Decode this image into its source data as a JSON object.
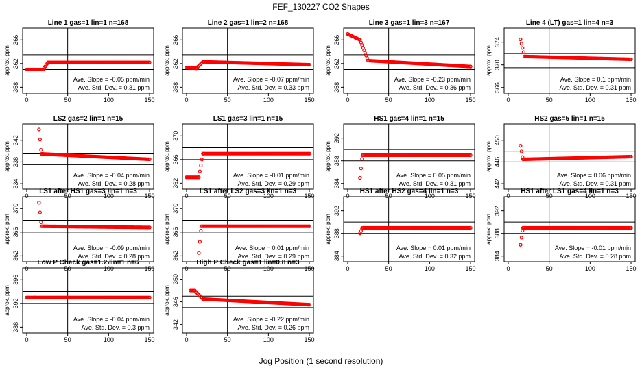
{
  "figure": {
    "title": "FEF_130227  CO2 Shapes",
    "xlabel": "Jog Position (1 second resolution)"
  },
  "chart_data": [
    {
      "type": "scatter",
      "title": "Line 1 gas=1 lin=1 n=168",
      "ylabel": "approx. ppm",
      "xlim": [
        -5,
        155
      ],
      "ylim": [
        357,
        368
      ],
      "xticks": [
        0,
        50,
        100,
        150
      ],
      "yticks": [
        358,
        362,
        366
      ],
      "vline": 50,
      "hlines": [
        363.5,
        361
      ],
      "slope": "Ave. Slope = -0.05 ppm/min",
      "stddev": "Ave. Std. Dev. = 0.31 ppm",
      "x": [
        0,
        20,
        26,
        150
      ],
      "y": [
        361,
        361,
        362.2,
        362.2
      ]
    },
    {
      "type": "scatter",
      "title": "Line 2 gas=1 lin=2 n=168",
      "ylabel": "approx. ppm",
      "xlim": [
        -5,
        155
      ],
      "ylim": [
        357,
        368
      ],
      "xticks": [
        0,
        50,
        100,
        150
      ],
      "yticks": [
        358,
        362,
        366
      ],
      "vline": 50,
      "hlines": [
        363.5,
        361
      ],
      "slope": "Ave. Slope = -0.07 ppm/min",
      "stddev": "Ave. Std. Dev. = 0.33 ppm",
      "x": [
        0,
        12,
        20,
        150
      ],
      "y": [
        361.3,
        361.2,
        362.3,
        361.8
      ]
    },
    {
      "type": "scatter",
      "title": "Line 3 gas=1 lin=3 n=167",
      "ylabel": "approx. ppm",
      "xlim": [
        -5,
        155
      ],
      "ylim": [
        357,
        368
      ],
      "xticks": [
        0,
        50,
        100,
        150
      ],
      "yticks": [
        358,
        362,
        366
      ],
      "vline": 50,
      "hlines": [
        363.5,
        361
      ],
      "slope": "Ave. Slope = -0.23 ppm/min",
      "stddev": "Ave. Std. Dev. = 0.36 ppm",
      "x": [
        0,
        15,
        25,
        150
      ],
      "y": [
        367,
        366,
        362.5,
        361.5
      ]
    },
    {
      "type": "scatter",
      "title": "Line 4 (LT) gas=1 lin=4 n=3",
      "ylabel": "approx. ppm",
      "xlim": [
        -5,
        155
      ],
      "ylim": [
        365,
        376.5
      ],
      "xticks": [
        0,
        50,
        100,
        150
      ],
      "yticks": [
        366,
        370,
        374
      ],
      "vline": 50,
      "hlines": [
        372,
        369.5
      ],
      "slope": "Ave. Slope = 0.1 ppm/min",
      "stddev": "Ave. Std. Dev. = 0.31 ppm",
      "x": [
        15,
        20,
        150
      ],
      "y": [
        374.5,
        371.5,
        371
      ]
    },
    {
      "type": "scatter",
      "title": "LS2 gas=2 lin=1 n=15",
      "ylabel": "approx. ppm",
      "xlim": [
        -5,
        155
      ],
      "ylim": [
        333,
        345
      ],
      "xticks": [
        0,
        50,
        100,
        150
      ],
      "yticks": [
        334,
        338,
        342
      ],
      "vline": 50,
      "hlines": [
        339.5,
        337.5
      ],
      "slope": "Ave. Slope = -0.04 ppm/min",
      "stddev": "Ave. Std. Dev. = 0.28 ppm",
      "x": [
        15,
        18,
        150
      ],
      "y": [
        344,
        339.5,
        338.5
      ]
    },
    {
      "type": "scatter",
      "title": "LS1 gas=3 lin=1 n=15",
      "ylabel": "approx. ppm",
      "xlim": [
        -5,
        155
      ],
      "ylim": [
        361,
        372
      ],
      "xticks": [
        0,
        50,
        100,
        150
      ],
      "yticks": [
        362,
        366,
        370
      ],
      "vline": 50,
      "hlines": [
        368,
        366
      ],
      "slope": "Ave. Slope = -0.01 ppm/min",
      "stddev": "Ave. Std. Dev. = 0.29 ppm",
      "x": [
        0,
        15,
        20,
        150
      ],
      "y": [
        363,
        363,
        367,
        367
      ]
    },
    {
      "type": "scatter",
      "title": "HS1 gas=4 lin=1 n=15",
      "ylabel": "approx. ppm",
      "xlim": [
        -5,
        155
      ],
      "ylim": [
        383,
        394.5
      ],
      "xticks": [
        0,
        50,
        100,
        150
      ],
      "yticks": [
        384,
        388,
        392
      ],
      "vline": 50,
      "hlines": [
        390,
        388
      ],
      "slope": "Ave. Slope = 0.05 ppm/min",
      "stddev": "Ave. Std. Dev. = 0.31 ppm",
      "x": [
        15,
        18,
        150
      ],
      "y": [
        385,
        389,
        389
      ]
    },
    {
      "type": "scatter",
      "title": "HS2 gas=5 lin=1 n=15",
      "ylabel": "approx. ppm",
      "xlim": [
        -5,
        155
      ],
      "ylim": [
        441,
        453
      ],
      "xticks": [
        0,
        50,
        100,
        150
      ],
      "yticks": [
        442,
        446,
        450
      ],
      "vline": 50,
      "hlines": [
        448,
        446
      ],
      "slope": "Ave. Slope = 0.06 ppm/min",
      "stddev": "Ave. Std. Dev. = 0.31 ppm",
      "x": [
        15,
        18,
        150
      ],
      "y": [
        449,
        446.5,
        447
      ]
    },
    {
      "type": "scatter",
      "title": "LS1 after HS1 gas=3 lin=1 n=3",
      "ylabel": "approx. ppm",
      "xlim": [
        -5,
        155
      ],
      "ylim": [
        361,
        372
      ],
      "xticks": [
        0,
        50,
        100,
        150
      ],
      "yticks": [
        362,
        366,
        370
      ],
      "vline": 50,
      "hlines": [
        368,
        366
      ],
      "slope": "Ave. Slope = -0.09 ppm/min",
      "stddev": "Ave. Std. Dev. = 0.28 ppm",
      "x": [
        15,
        18,
        150
      ],
      "y": [
        371,
        367,
        366.8
      ]
    },
    {
      "type": "scatter",
      "title": "LS1 after LS2 gas=3 lin=1 n=3",
      "ylabel": "approx. ppm",
      "xlim": [
        -5,
        155
      ],
      "ylim": [
        361,
        372
      ],
      "xticks": [
        0,
        50,
        100,
        150
      ],
      "yticks": [
        362,
        366,
        370
      ],
      "vline": 50,
      "hlines": [
        368,
        366
      ],
      "slope": "Ave. Slope = 0.01 ppm/min",
      "stddev": "Ave. Std. Dev. = 0.29 ppm",
      "x": [
        15,
        18,
        150
      ],
      "y": [
        362.5,
        367,
        367
      ]
    },
    {
      "type": "scatter",
      "title": "HS1 after HS2 gas=4 lin=1 n=3",
      "ylabel": "approx. ppm",
      "xlim": [
        -5,
        155
      ],
      "ylim": [
        383,
        394.5
      ],
      "xticks": [
        0,
        50,
        100,
        150
      ],
      "yticks": [
        384,
        388,
        392
      ],
      "vline": 50,
      "hlines": [
        390,
        388
      ],
      "slope": "Ave. Slope = 0.01 ppm/min",
      "stddev": "Ave. Std. Dev. = 0.32 ppm",
      "x": [
        15,
        18,
        150
      ],
      "y": [
        388,
        389,
        389
      ]
    },
    {
      "type": "scatter",
      "title": "HS1 after LS1 gas=4 lin=1 n=3",
      "ylabel": "approx. ppm",
      "xlim": [
        -5,
        155
      ],
      "ylim": [
        383,
        394.5
      ],
      "xticks": [
        0,
        50,
        100,
        150
      ],
      "yticks": [
        384,
        388,
        392
      ],
      "vline": 50,
      "hlines": [
        390,
        388
      ],
      "slope": "Ave. Slope = -0.01 ppm/min",
      "stddev": "Ave. Std. Dev. = 0.28 ppm",
      "x": [
        15,
        18,
        150
      ],
      "y": [
        386,
        389,
        389
      ]
    },
    {
      "type": "scatter",
      "title": "Low P Check gas=1.2 lin=1 n=6",
      "ylabel": "approx. ppm",
      "xlim": [
        -5,
        155
      ],
      "ylim": [
        387,
        398
      ],
      "xticks": [
        0,
        50,
        100,
        150
      ],
      "yticks": [
        388,
        392,
        396
      ],
      "vline": 50,
      "hlines": [
        394,
        392
      ],
      "slope": "Ave. Slope = -0.04 ppm/min",
      "stddev": "Ave. Std. Dev. = 0.3 ppm",
      "x": [
        0,
        10,
        150
      ],
      "y": [
        393,
        393,
        393
      ]
    },
    {
      "type": "scatter",
      "title": "High P Check gas=1 lin=0.8 n=3",
      "ylabel": "approx. ppm",
      "xlim": [
        -5,
        155
      ],
      "ylim": [
        340.5,
        352
      ],
      "xticks": [
        0,
        50,
        100,
        150
      ],
      "yticks": [
        342,
        346,
        350
      ],
      "vline": 50,
      "hlines": [
        347,
        345
      ],
      "slope": "Ave. Slope = -0.22 ppm/min",
      "stddev": "Ave. Std. Dev. = 0.26 ppm",
      "x": [
        5,
        10,
        20,
        150
      ],
      "y": [
        348,
        348,
        346.5,
        345.5
      ]
    }
  ]
}
